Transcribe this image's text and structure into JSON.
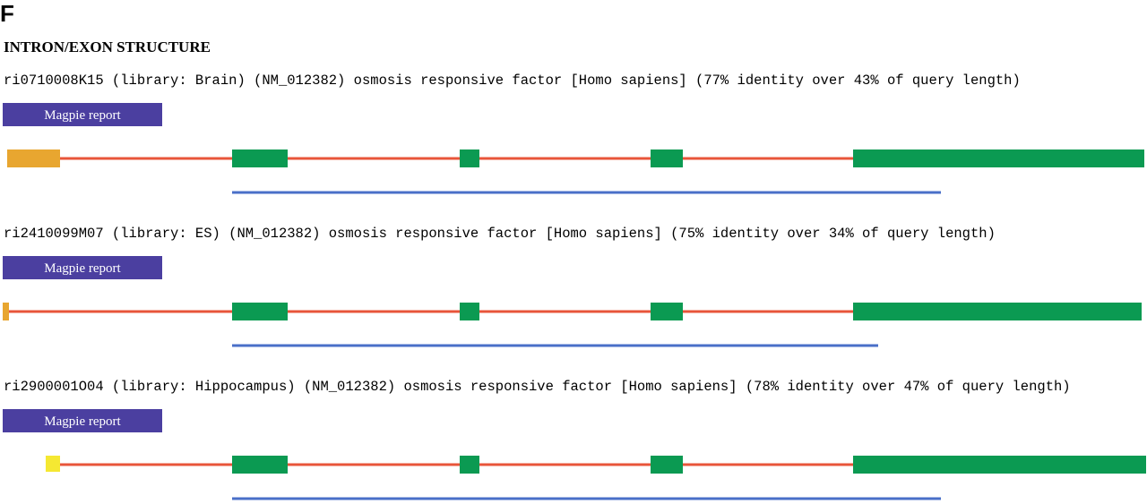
{
  "panel_label": "F",
  "title": "INTRON/EXON STRUCTURE",
  "entries": [
    {
      "description": "ri0710008K15 (library: Brain) (NM_012382) osmosis responsive factor [Homo sapiens] (77% identity over 43% of query length)",
      "button": "Magpie report"
    },
    {
      "description": "ri2410099M07 (library: ES) (NM_012382) osmosis responsive factor [Homo sapiens] (75% identity over 34% of query length)",
      "button": "Magpie report"
    },
    {
      "description": "ri2900001O04 (library: Hippocampus) (NM_012382) osmosis responsive factor [Homo sapiens] (78% identity over 47% of query length)",
      "button": "Magpie report"
    }
  ]
}
